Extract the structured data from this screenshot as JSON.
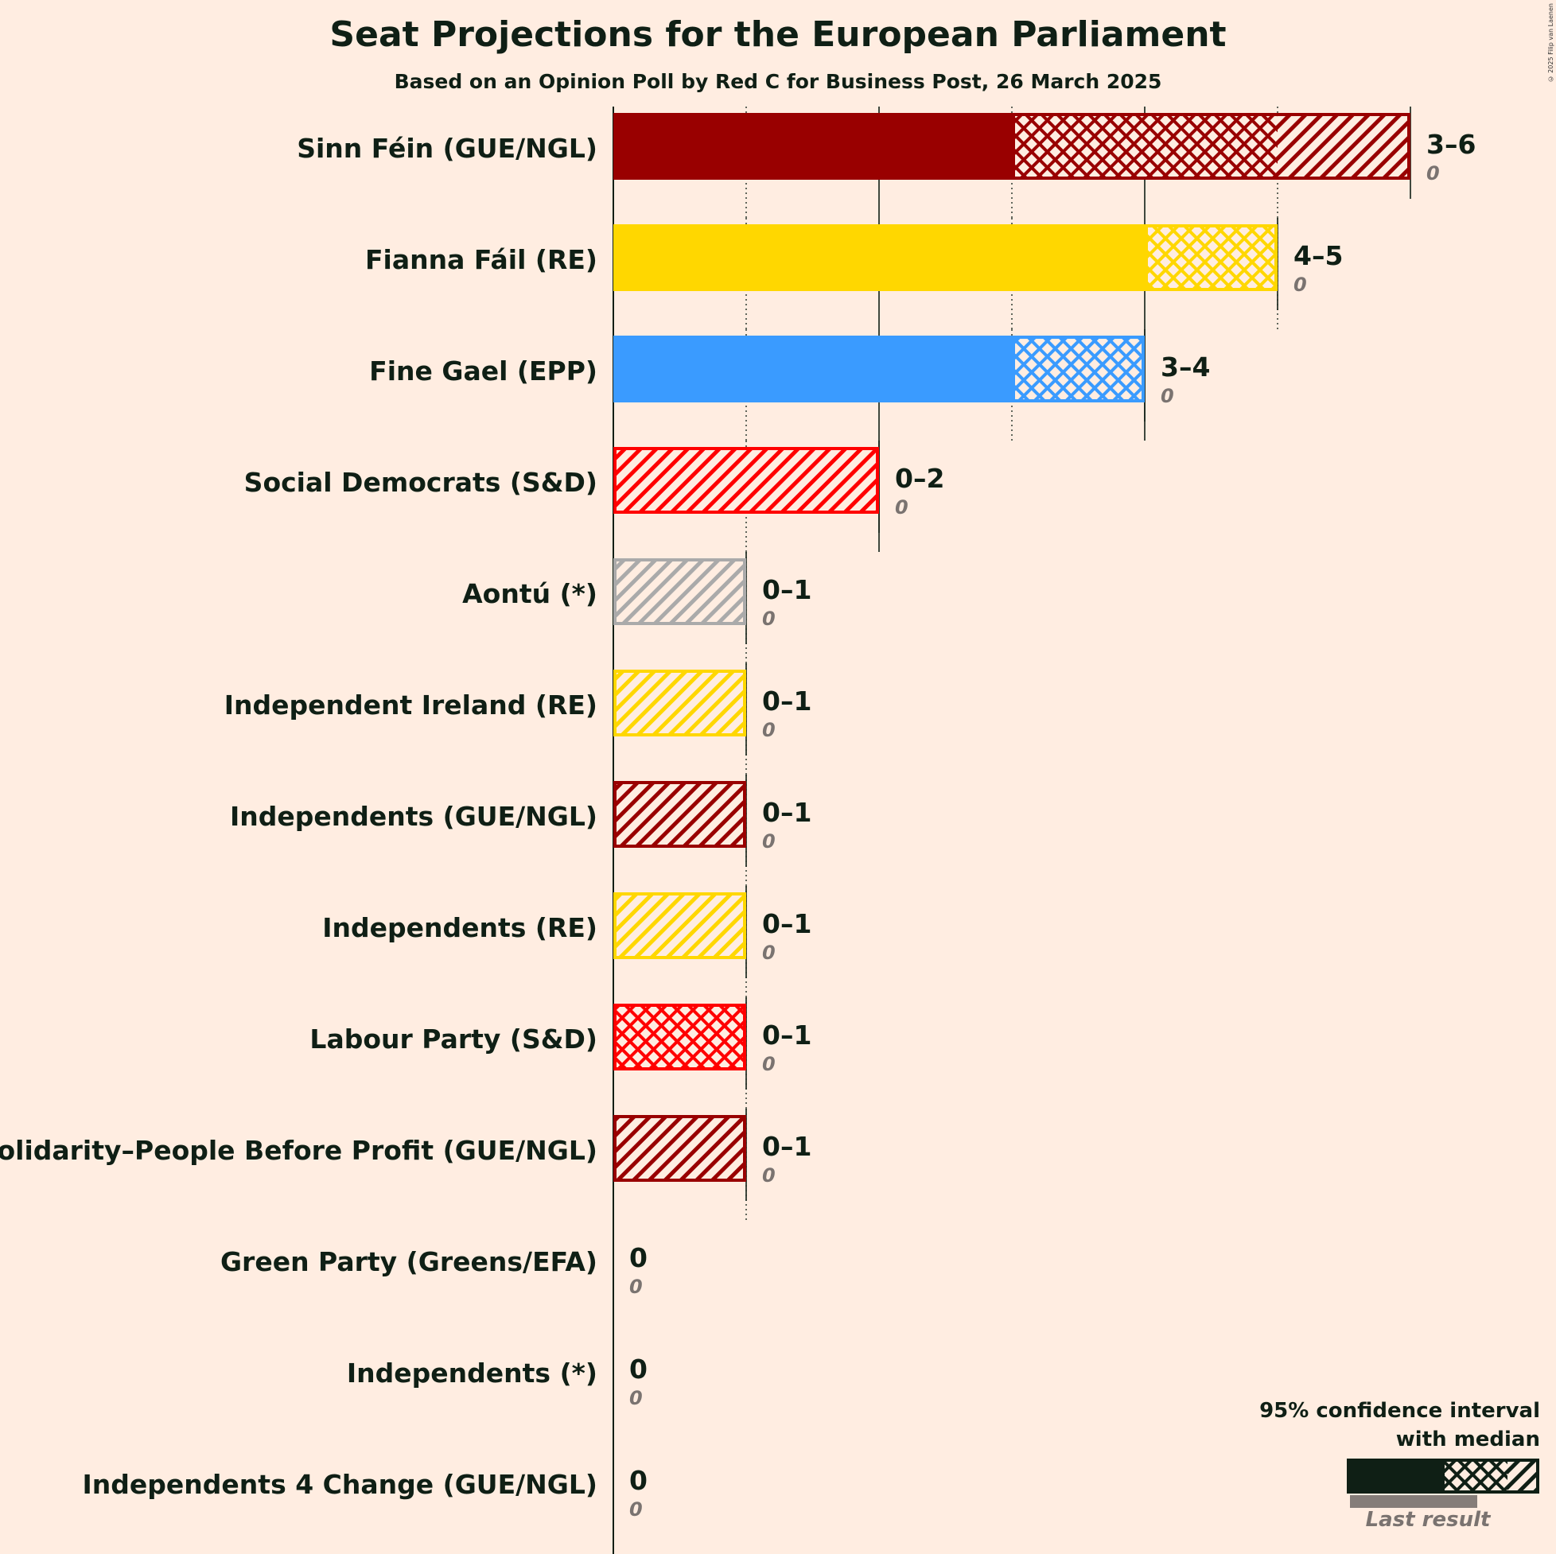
{
  "title": "Seat Projections for the European Parliament",
  "subtitle": "Based on an Opinion Poll by Red C for Business Post, 26 March 2025",
  "copyright": "© 2025 Filip van Laenen",
  "legend": {
    "line1": "95% confidence interval",
    "line2": "with median",
    "last_result": "Last result"
  },
  "chart_data": {
    "type": "bar",
    "orientation": "horizontal",
    "title": "Seat Projections for the European Parliament",
    "xlim": [
      0,
      6
    ],
    "gridlines": [
      1,
      2,
      3,
      4,
      5
    ],
    "parties": [
      {
        "name": "Sinn Féin (GUE/NGL)",
        "low": 3,
        "median": 5,
        "high": 6,
        "range_label": "3–6",
        "last": 0,
        "last_label": "0",
        "color": "#990000"
      },
      {
        "name": "Fianna Fáil (RE)",
        "low": 4,
        "median": 5,
        "high": 5,
        "range_label": "4–5",
        "last": 0,
        "last_label": "0",
        "color": "#FFD700"
      },
      {
        "name": "Fine Gael (EPP)",
        "low": 3,
        "median": 4,
        "high": 4,
        "range_label": "3–4",
        "last": 0,
        "last_label": "0",
        "color": "#3A9BFF"
      },
      {
        "name": "Social Democrats (S&D)",
        "low": 0,
        "median": 0,
        "high": 2,
        "range_label": "0–2",
        "last": 0,
        "last_label": "0",
        "color": "#FF0000"
      },
      {
        "name": "Aontú (*)",
        "low": 0,
        "median": 0,
        "high": 1,
        "range_label": "0–1",
        "last": 0,
        "last_label": "0",
        "color": "#AAAAAA"
      },
      {
        "name": "Independent Ireland (RE)",
        "low": 0,
        "median": 0,
        "high": 1,
        "range_label": "0–1",
        "last": 0,
        "last_label": "0",
        "color": "#FFD700"
      },
      {
        "name": "Independents (GUE/NGL)",
        "low": 0,
        "median": 0,
        "high": 1,
        "range_label": "0–1",
        "last": 0,
        "last_label": "0",
        "color": "#990000"
      },
      {
        "name": "Independents (RE)",
        "low": 0,
        "median": 0,
        "high": 1,
        "range_label": "0–1",
        "last": 0,
        "last_label": "0",
        "color": "#FFD700"
      },
      {
        "name": "Labour Party (S&D)",
        "low": 0,
        "median": 1,
        "high": 1,
        "range_label": "0–1",
        "last": 0,
        "last_label": "0",
        "color": "#FF0000"
      },
      {
        "name": "Solidarity–People Before Profit (GUE/NGL)",
        "low": 0,
        "median": 0,
        "high": 1,
        "range_label": "0–1",
        "last": 0,
        "last_label": "0",
        "color": "#990000"
      },
      {
        "name": "Green Party (Greens/EFA)",
        "low": 0,
        "median": 0,
        "high": 0,
        "range_label": "0",
        "last": 0,
        "last_label": "0",
        "color": "#22AC6F"
      },
      {
        "name": "Independents (*)",
        "low": 0,
        "median": 0,
        "high": 0,
        "range_label": "0",
        "last": 0,
        "last_label": "0",
        "color": "#AAAAAA"
      },
      {
        "name": "Independents 4 Change (GUE/NGL)",
        "low": 0,
        "median": 0,
        "high": 0,
        "range_label": "0",
        "last": 0,
        "last_label": "0",
        "color": "#990000"
      }
    ]
  }
}
